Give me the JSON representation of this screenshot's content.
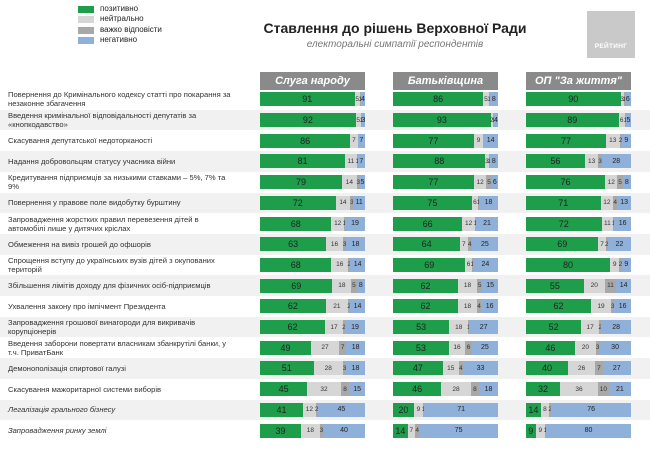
{
  "legend": [
    {
      "label": "позитивно",
      "color": "#1e9e4b"
    },
    {
      "label": "нейтрально",
      "color": "#d6d6d6"
    },
    {
      "label": "важко відповісти",
      "color": "#a8a8a8"
    },
    {
      "label": "негативно",
      "color": "#8fb0d8"
    }
  ],
  "header": {
    "title": "Ставлення до рішень Верховної Ради",
    "subtitle": "електоральні симпатії респондентів",
    "logo_text": "РЕЙТИНГ"
  },
  "colors": {
    "positive": "#1e9e4b",
    "neutral": "#d6d6d6",
    "hard": "#a8a8a8",
    "negative": "#8fb0d8",
    "header": "#8a8a8a"
  },
  "chart_data": {
    "type": "bar",
    "stacked": true,
    "unit": "%",
    "categories": [
      "Повернення до Кримінального кодексу статті про покарання за незаконне збагачення",
      "Введення кримінальної відповідальності депутатів за «кнопкодавство»",
      "Скасування депутатської недоторканості",
      "Надання добровольцям статусу учасника війни",
      "Кредитування підприємців за низькими ставками – 5%, 7% та 9%",
      "Повернення у правове поле видобутку бурштину",
      "Запровадження жорстких правил перевезення дітей в автомобілі лише у дитячих кріслах",
      "Обмеження на вивіз грошей до офшорів",
      "Спрощення вступу до українських вузів дітей з окупованих територій",
      "Збільшення лімітів доходу для фізичних осіб-підприємців",
      "Ухвалення закону про імпічмент Президента",
      "Запровадження грошової винагороди для викривачів корупціонерів",
      "Введення заборони повертати власникам збанкрутілі банки, у т.ч. ПриватБанк",
      "Демонополізація спиртової галузі",
      "Скасування мажоритарної системи виборів",
      "Легалізація грального бізнесу",
      "Запровадження ринку землі"
    ],
    "series_names": [
      "позитивно",
      "нейтрально",
      "важко відповісти",
      "негативно"
    ],
    "groups": [
      {
        "name": "Слуга народу",
        "values": [
          [
            91,
            5,
            1,
            4
          ],
          [
            92,
            5,
            1,
            3
          ],
          [
            86,
            7,
            0,
            7
          ],
          [
            81,
            11,
            1,
            7
          ],
          [
            79,
            14,
            3,
            5
          ],
          [
            72,
            14,
            3,
            11
          ],
          [
            68,
            12,
            1,
            19
          ],
          [
            63,
            16,
            3,
            18
          ],
          [
            68,
            16,
            2,
            14
          ],
          [
            69,
            18,
            5,
            8
          ],
          [
            62,
            21,
            2,
            14
          ],
          [
            62,
            17,
            2,
            19
          ],
          [
            49,
            27,
            7,
            18
          ],
          [
            51,
            28,
            3,
            18
          ],
          [
            45,
            32,
            8,
            15
          ],
          [
            41,
            12,
            2,
            45
          ],
          [
            39,
            18,
            3,
            40
          ]
        ]
      },
      {
        "name": "Батьківщина",
        "values": [
          [
            86,
            5,
            1,
            8
          ],
          [
            93,
            2,
            1,
            4
          ],
          [
            77,
            9,
            0,
            14
          ],
          [
            88,
            3,
            1,
            8
          ],
          [
            77,
            12,
            5,
            6
          ],
          [
            75,
            6,
            1,
            18
          ],
          [
            66,
            12,
            1,
            21
          ],
          [
            64,
            7,
            4,
            25
          ],
          [
            69,
            6,
            1,
            24
          ],
          [
            62,
            18,
            5,
            15
          ],
          [
            62,
            18,
            4,
            16
          ],
          [
            53,
            18,
            1,
            27
          ],
          [
            53,
            16,
            6,
            25
          ],
          [
            47,
            15,
            4,
            33
          ],
          [
            46,
            28,
            8,
            18
          ],
          [
            20,
            9,
            1,
            71
          ],
          [
            14,
            7,
            4,
            75
          ]
        ]
      },
      {
        "name": "ОП \"За життя\"",
        "values": [
          [
            90,
            3,
            1,
            6
          ],
          [
            89,
            6,
            1,
            5
          ],
          [
            77,
            13,
            2,
            9
          ],
          [
            56,
            13,
            3,
            28
          ],
          [
            76,
            12,
            5,
            8
          ],
          [
            71,
            12,
            4,
            13
          ],
          [
            72,
            11,
            1,
            16
          ],
          [
            69,
            7,
            2,
            22
          ],
          [
            80,
            9,
            2,
            9
          ],
          [
            55,
            20,
            11,
            14
          ],
          [
            62,
            19,
            3,
            16
          ],
          [
            52,
            17,
            2,
            28
          ],
          [
            46,
            20,
            3,
            30
          ],
          [
            40,
            26,
            7,
            27
          ],
          [
            32,
            36,
            10,
            21
          ],
          [
            14,
            8,
            2,
            76
          ],
          [
            9,
            9,
            1,
            80
          ]
        ]
      }
    ]
  }
}
